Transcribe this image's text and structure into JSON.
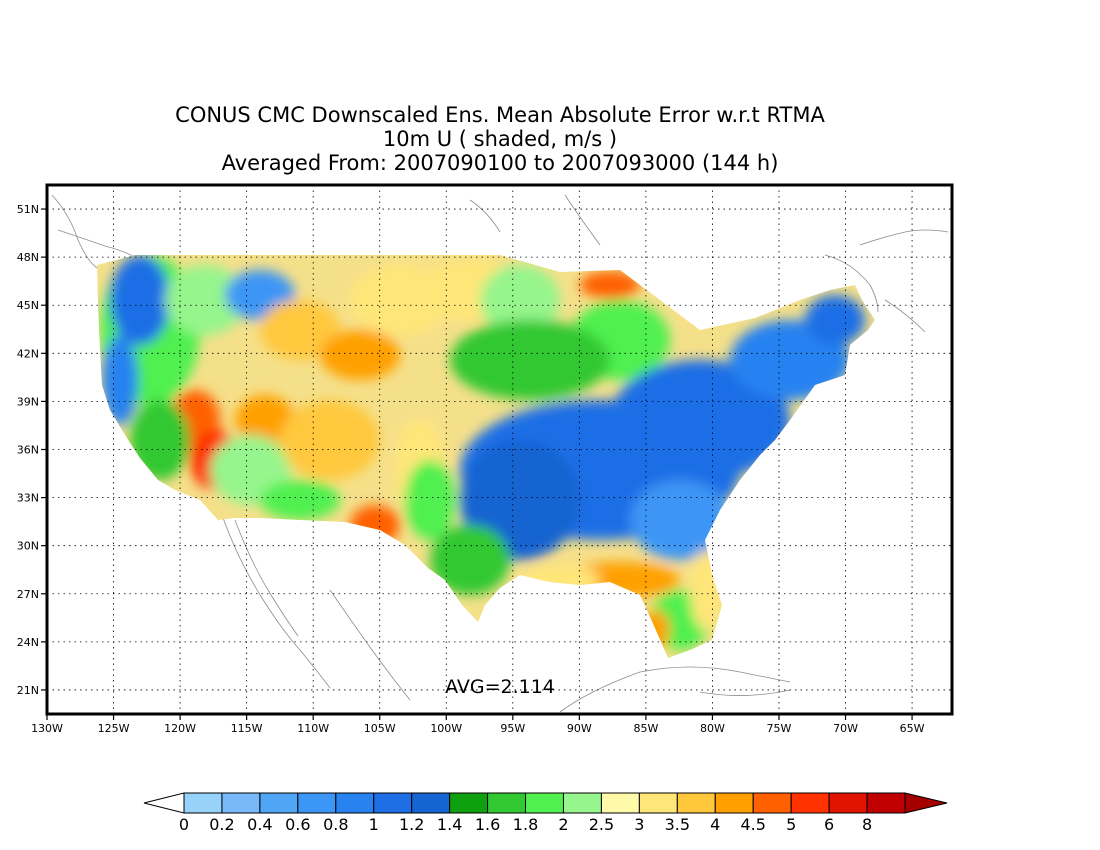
{
  "title": {
    "line1": "CONUS CMC Downscaled Ens. Mean Absolute Error w.r.t RTMA",
    "line2": "10m U ( shaded, m/s )",
    "line3": "Averaged From: 2007090100 to 2007093000 (144 h)"
  },
  "map": {
    "lon_range": [
      -130,
      -62
    ],
    "lat_range": [
      19.5,
      52.5
    ],
    "lat_ticks": [
      "51N",
      "48N",
      "45N",
      "42N",
      "39N",
      "36N",
      "33N",
      "30N",
      "27N",
      "24N",
      "21N"
    ],
    "lon_ticks": [
      "130W",
      "125W",
      "120W",
      "115W",
      "110W",
      "105W",
      "100W",
      "95W",
      "90W",
      "85W",
      "80W",
      "75W",
      "70W",
      "65W"
    ],
    "grid": true,
    "annotation": "AVG=2.114"
  },
  "colorbar": {
    "labels": [
      "0",
      "0.2",
      "0.4",
      "0.6",
      "0.8",
      "1",
      "1.2",
      "1.4",
      "1.6",
      "1.8",
      "2",
      "2.5",
      "3",
      "3.5",
      "4",
      "4.5",
      "5",
      "6",
      "8"
    ],
    "colors": [
      "#96d2fa",
      "#78b9fa",
      "#50a5f5",
      "#3c96f5",
      "#2882f0",
      "#1e6ee6",
      "#1464d2",
      "#0fa00f",
      "#32c832",
      "#50f050",
      "#96f58c",
      "#fffaaa",
      "#ffe678",
      "#ffc83c",
      "#ffa000",
      "#ff6000",
      "#ff3200",
      "#e11400",
      "#c00000"
    ],
    "extend_low_color": "#ffffff",
    "extend_high_color": "#a50000"
  }
}
